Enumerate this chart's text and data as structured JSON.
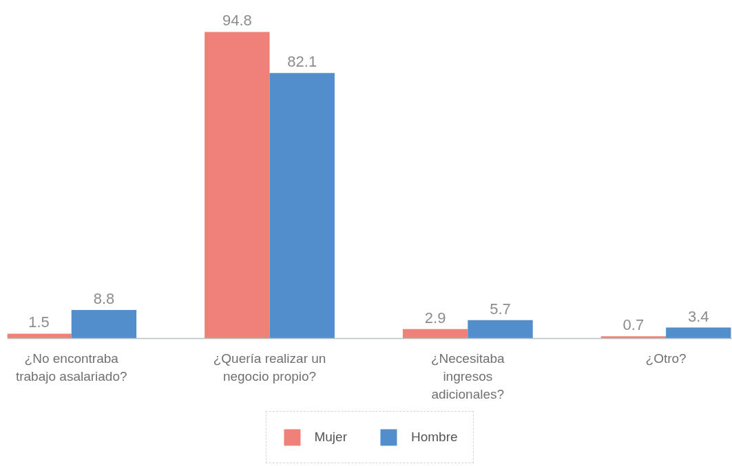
{
  "chart_data": {
    "type": "bar",
    "categories": [
      "¿No encontraba trabajo asalariado?",
      "¿Quería realizar un negocio propio?",
      "¿Necesitaba ingresos adicionales?",
      "¿Otro?"
    ],
    "series": [
      {
        "name": "Mujer",
        "color": "#f08178",
        "values": [
          1.5,
          94.8,
          2.9,
          0.7
        ]
      },
      {
        "name": "Hombre",
        "color": "#518ecb",
        "values": [
          8.8,
          82.1,
          5.7,
          3.4
        ]
      }
    ],
    "data_labels": true,
    "tick_labels": "x",
    "legend": "bottom"
  }
}
